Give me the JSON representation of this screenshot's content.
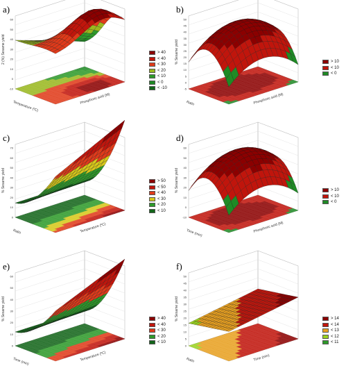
{
  "chart_data": [
    {
      "panel": "a)",
      "type": "surface3d",
      "zlabel": "2 (%) Sesame yield",
      "xlabel": "Temperature (ºC)",
      "ylabel": "Phosphoric acid (M)",
      "zticks": [
        "-10",
        "0",
        "10",
        "20",
        "30",
        "40",
        "50",
        "60"
      ],
      "legend": [
        {
          "label": "> 40",
          "color": "#8b0000"
        },
        {
          "label": "< 40",
          "color": "#c0150c"
        },
        {
          "label": "< 30",
          "color": "#e03a1a"
        },
        {
          "label": "< 20",
          "color": "#9ab81f"
        },
        {
          "label": "< 10",
          "color": "#2e9a2a"
        },
        {
          "label": "< 0",
          "color": "#1f8a25"
        },
        {
          "label": "< -10",
          "color": "#13651a"
        }
      ]
    },
    {
      "panel": "b)",
      "type": "surface3d",
      "zlabel": "% Sesame yield",
      "xlabel": "Ratio",
      "ylabel": "Phosphoric acid (M)",
      "zticks": [
        "-5",
        "0",
        "5",
        "10",
        "15",
        "20",
        "25",
        "30",
        "35",
        "40",
        "45",
        "50"
      ],
      "legend": [
        {
          "label": "> 10",
          "color": "#8b0000"
        },
        {
          "label": "< 10",
          "color": "#c0150c"
        },
        {
          "label": "< 0",
          "color": "#1f8a25"
        }
      ]
    },
    {
      "panel": "c)",
      "type": "surface3d",
      "zlabel": "% Sesame yield",
      "xlabel": "Ratio",
      "ylabel": "Temperature (ºC)",
      "zticks": [
        "0",
        "10",
        "20",
        "30",
        "40",
        "50",
        "60",
        "70"
      ],
      "legend": [
        {
          "label": "> 50",
          "color": "#8b0000"
        },
        {
          "label": "< 50",
          "color": "#c0150c"
        },
        {
          "label": "< 40",
          "color": "#e03a1a"
        },
        {
          "label": "< 30",
          "color": "#d7c81a"
        },
        {
          "label": "< 20",
          "color": "#2e9a2a"
        },
        {
          "label": "< 10",
          "color": "#13651a"
        }
      ]
    },
    {
      "panel": "d)",
      "type": "surface3d",
      "zlabel": "% Sesame yield",
      "xlabel": "Time (min)",
      "ylabel": "Phosphoric acid (M)",
      "zticks": [
        "-10",
        "0",
        "10",
        "20",
        "30",
        "40",
        "50",
        "60"
      ],
      "legend": [
        {
          "label": "> 10",
          "color": "#8b0000"
        },
        {
          "label": "< 10",
          "color": "#c0150c"
        },
        {
          "label": "< 0",
          "color": "#1f8a25"
        }
      ]
    },
    {
      "panel": "e)",
      "type": "surface3d",
      "zlabel": "% Sesame yield",
      "xlabel": "Time (min)",
      "ylabel": "Temperature (ºC)",
      "zticks": [
        "0",
        "10",
        "20",
        "30",
        "40",
        "50",
        "60"
      ],
      "legend": [
        {
          "label": "> 40",
          "color": "#8b0000"
        },
        {
          "label": "< 40",
          "color": "#c0150c"
        },
        {
          "label": "< 30",
          "color": "#e03a1a"
        },
        {
          "label": "< 20",
          "color": "#2e9a2a"
        },
        {
          "label": "< 10",
          "color": "#13651a"
        }
      ]
    },
    {
      "panel": "f)",
      "type": "surface3d",
      "zlabel": "% Sesame yield",
      "xlabel": "Ratio",
      "ylabel": "Time (min)",
      "zticks": [
        "0",
        "5",
        "10",
        "15",
        "20",
        "25",
        "30",
        "35",
        "40",
        "45",
        "50"
      ],
      "legend": [
        {
          "label": "> 14",
          "color": "#8b0000"
        },
        {
          "label": "< 14",
          "color": "#c0150c"
        },
        {
          "label": "< 13",
          "color": "#e8a020"
        },
        {
          "label": "< 12",
          "color": "#9ad21f"
        },
        {
          "label": "< 11",
          "color": "#2e9a2a"
        }
      ]
    }
  ]
}
